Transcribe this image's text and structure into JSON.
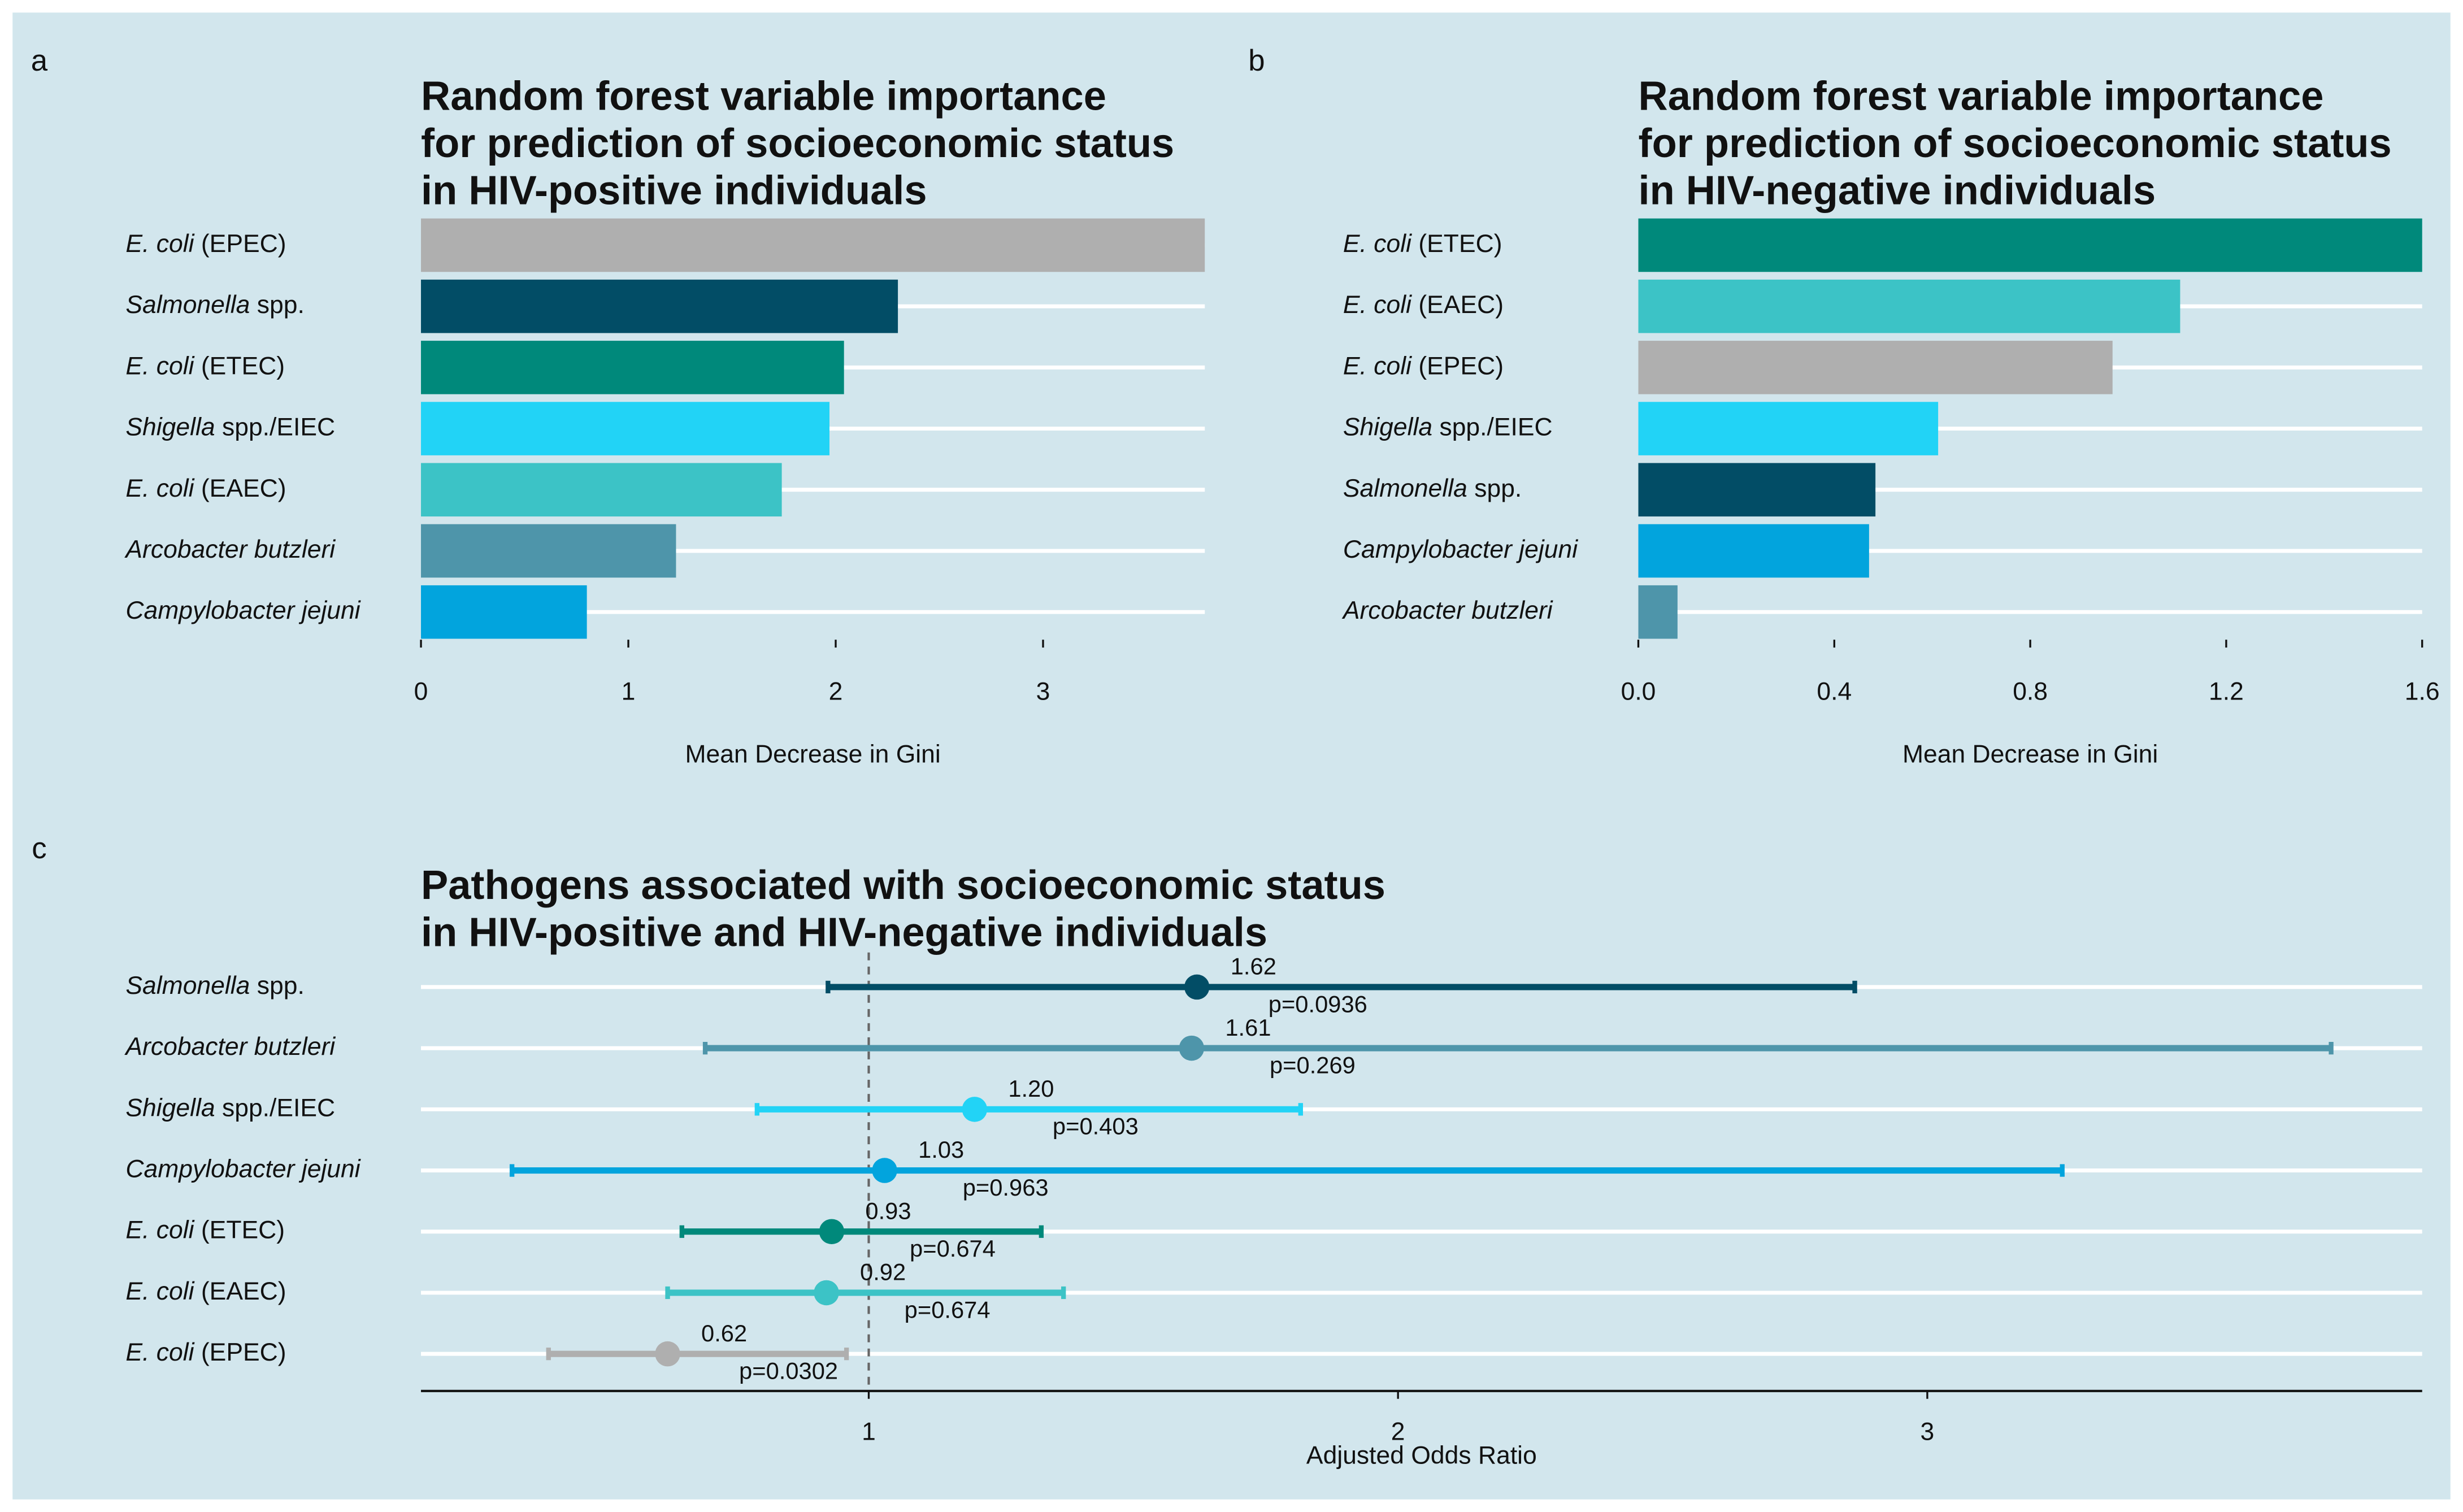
{
  "chart_data": [
    {
      "type": "bar",
      "panel_label": "a",
      "title": [
        "Random forest variable importance",
        "for prediction of socioeconomic status",
        "in HIV-positive individuals"
      ],
      "categories": [
        "E. coli (EPEC)",
        "Salmonella spp.",
        "E. coli (ETEC)",
        "Shigella spp./EIEC",
        "E. coli (EAEC)",
        "Arcobacter butzleri",
        "Campylobacter jejuni"
      ],
      "values": [
        3.78,
        2.3,
        2.04,
        1.97,
        1.74,
        1.23,
        0.8
      ],
      "colors": [
        "#afafaf",
        "#024d66",
        "#00897b",
        "#22d3f6",
        "#3cc3c6",
        "#4e95aa",
        "#02a4dd"
      ],
      "xlabel": "Mean Decrease in Gini",
      "xlim": [
        0,
        3.78
      ],
      "xticks": [
        0,
        1,
        2,
        3
      ],
      "grid": true
    },
    {
      "type": "bar",
      "panel_label": "b",
      "title": [
        "Random forest variable importance",
        "for prediction of socioeconomic status",
        "in HIV-negative individuals"
      ],
      "categories": [
        "E. coli (ETEC)",
        "E. coli (EAEC)",
        "E. coli (EPEC)",
        "Shigella spp./EIEC",
        "Salmonella spp.",
        "Campylobacter jejuni",
        "Arcobacter butzleri"
      ],
      "values": [
        1.6,
        1.106,
        0.968,
        0.612,
        0.484,
        0.471,
        0.08
      ],
      "colors": [
        "#00897b",
        "#3cc3c6",
        "#afafaf",
        "#22d3f6",
        "#024d66",
        "#02a4dd",
        "#4e95aa"
      ],
      "xlabel": "Mean Decrease in Gini",
      "xlim": [
        0,
        1.6
      ],
      "xticks": [
        {
          "value": 0,
          "label": "0.0"
        },
        0.4,
        0.8,
        1.2,
        1.6
      ],
      "grid": true
    },
    {
      "type": "forest",
      "panel_label": "c",
      "title": [
        "Pathogens associated with socioeconomic status",
        "in HIV-positive and HIV-negative individuals"
      ],
      "categories": [
        "Salmonella spp.",
        "Arcobacter butzleri",
        "Shigella spp./EIEC",
        "Campylobacter jejuni",
        "E. coli (ETEC)",
        "E. coli (EAEC)",
        "E. coli (EPEC)"
      ],
      "values": [
        1.62,
        1.61,
        1.2,
        1.03,
        0.93,
        0.92,
        0.62
      ],
      "value_labels": [
        "1.62",
        "1.61",
        "1.20",
        "1.03",
        "0.93",
        "0.92",
        "0.62"
      ],
      "lower": [
        0.923,
        0.691,
        0.789,
        0.326,
        0.647,
        0.62,
        0.395
      ],
      "upper": [
        2.863,
        3.763,
        1.816,
        3.255,
        1.326,
        1.368,
        0.958
      ],
      "p_labels": [
        "p=0.0936",
        "p=0.269",
        "p=0.403",
        "p=0.963",
        "p=0.674",
        "p=0.674",
        "p=0.0302"
      ],
      "colors": [
        "#024d66",
        "#4e95aa",
        "#22d3f6",
        "#02a4dd",
        "#00897b",
        "#3cc3c6",
        "#afafaf"
      ],
      "xlabel": "Adjusted Odds Ratio",
      "xlim": [
        0.154,
        3.935
      ],
      "xticks": [
        1,
        2,
        3
      ],
      "reference_line": 1,
      "grid": true
    }
  ]
}
